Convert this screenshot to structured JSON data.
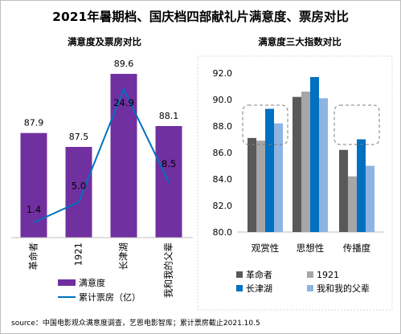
{
  "title": "2021年暑期档、国庆档四部献礼片满意度、票房对比",
  "source": "source：中国电影观众满意度调查，艺恩电影智库；累计票房截止2021.10.5",
  "chart_data": [
    {
      "type": "bar",
      "title": "满意度及票房对比",
      "categories": [
        "革命者",
        "1921",
        "长津湖",
        "我和我的父辈"
      ],
      "series": [
        {
          "name": "满意度",
          "type": "bar",
          "color": "#7030a0",
          "values": [
            87.9,
            87.5,
            89.6,
            88.1
          ],
          "value_labels": [
            "87.9",
            "87.5",
            "89.6",
            "88.1"
          ]
        },
        {
          "name": "累计票房（亿）",
          "type": "line",
          "color": "#0070c0",
          "values": [
            1.4,
            5.0,
            24.9,
            8.5
          ],
          "value_labels": [
            "1.4",
            "5.0",
            "24.9",
            "8.5"
          ]
        }
      ],
      "legend_position": "bottom"
    },
    {
      "type": "bar",
      "title": "满意度三大指数对比",
      "categories": [
        "观赏性",
        "思想性",
        "传播度"
      ],
      "ylim": [
        80,
        92
      ],
      "yticks": [
        "80.0",
        "82.0",
        "84.0",
        "86.0",
        "88.0",
        "90.0",
        "92.0"
      ],
      "grid": false,
      "series": [
        {
          "name": "革命者",
          "color": "#595959",
          "values": [
            87.1,
            90.2,
            86.2
          ]
        },
        {
          "name": "1921",
          "color": "#a6a6a6",
          "values": [
            86.9,
            90.6,
            84.2
          ]
        },
        {
          "name": "长津湖",
          "color": "#0070c0",
          "values": [
            89.3,
            91.7,
            87.0
          ]
        },
        {
          "name": "我和我的父辈",
          "color": "#8eb4e3",
          "values": [
            88.2,
            90.1,
            85.0
          ]
        }
      ],
      "highlighted_groups": [
        "观赏性",
        "传播度"
      ],
      "legend_position": "bottom"
    }
  ]
}
